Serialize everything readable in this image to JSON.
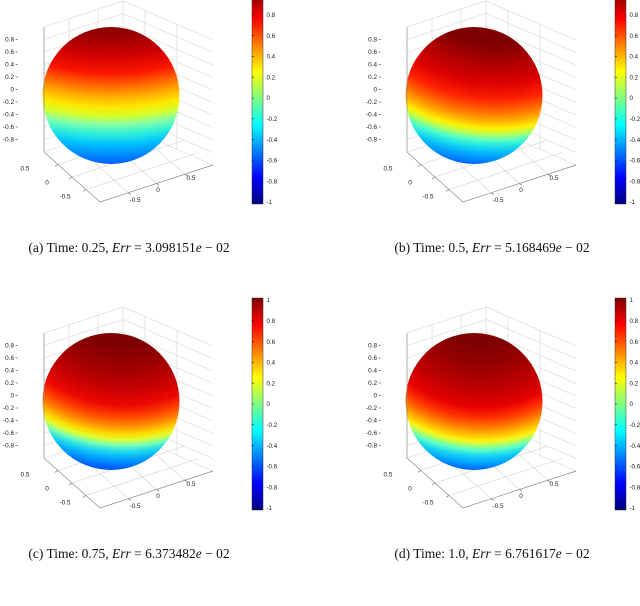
{
  "figure": {
    "background": "#ffffff",
    "panels": [
      {
        "id": "a",
        "caption": {
          "label": "(a)",
          "time_text": "Time: 0.25,",
          "err_word": "Err",
          "eq_mantissa": "= 3.098151",
          "e_char": "e",
          "exponent": " − 02"
        }
      },
      {
        "id": "b",
        "caption": {
          "label": "(b)",
          "time_text": "Time: 0.5,",
          "err_word": "Err",
          "eq_mantissa": "= 5.168469",
          "e_char": "e",
          "exponent": " − 02"
        }
      },
      {
        "id": "c",
        "caption": {
          "label": "(c)",
          "time_text": "Time: 0.75,",
          "err_word": "Err",
          "eq_mantissa": "= 6.373482",
          "e_char": "e",
          "exponent": " − 02"
        }
      },
      {
        "id": "d",
        "caption": {
          "label": "(d)",
          "time_text": "Time: 1.0,",
          "err_word": "Err",
          "eq_mantissa": "= 6.761617",
          "e_char": "e",
          "exponent": " − 02"
        }
      }
    ],
    "axes": {
      "z_ticks": [
        "0.8",
        "0.6",
        "0.4",
        "0.2",
        "0",
        "-0.2",
        "-0.4",
        "-0.6",
        "-0.8"
      ],
      "x_axis_ticks": [
        "0.5",
        "0",
        "-0.5"
      ],
      "y_axis_ticks": [
        "-0.5",
        "0",
        "0.5"
      ],
      "colorbar_ticks": [
        "1",
        "0.8",
        "0.6",
        "0.4",
        "0.2",
        "0",
        "-0.2",
        "-0.4",
        "-0.6",
        "-0.8",
        "-1"
      ]
    },
    "palette": {
      "colormap_name": "jet",
      "jet_stops_top_to_bottom": [
        "#7f0000",
        "#ff0000",
        "#ff8000",
        "#ffff00",
        "#80ff80",
        "#00ffff",
        "#0080ff",
        "#0000ff",
        "#000080"
      ],
      "grid_line": "#d6d6d6",
      "floor_grid_line": "#cfcfcf",
      "axis_line": "#8a8a8a",
      "tick_text": "#1a1a1a"
    }
  },
  "chart_data": [
    {
      "type": "heatmap",
      "variant": "3d-sphere-surface",
      "title": "(a) Time: 0.25, Err = 3.098151e − 02",
      "time": 0.25,
      "error": 0.03098151,
      "error_text": "3.098151e − 02",
      "colormap": "jet",
      "color_range": [
        -1,
        1
      ],
      "x_range": [
        -1,
        1
      ],
      "y_range": [
        -1,
        1
      ],
      "z_range": [
        -1,
        1
      ],
      "x_ticks": [
        0.5,
        0,
        -0.5
      ],
      "y_ticks": [
        -0.5,
        0,
        0.5
      ],
      "z_ticks": [
        0.8,
        0.6,
        0.4,
        0.2,
        0,
        -0.2,
        -0.4,
        -0.6,
        -0.8
      ],
      "colorbar_ticks": [
        1,
        0.8,
        0.6,
        0.4,
        0.2,
        0,
        -0.2,
        -0.4,
        -0.6,
        -0.8,
        -1
      ],
      "description": "Scalar field on unit sphere; color bands nearly horizontal: dark-red cap at top, yellow band ~60% down, cyan/blue at bottom pole."
    },
    {
      "type": "heatmap",
      "variant": "3d-sphere-surface",
      "title": "(b) Time: 0.5, Err = 5.168469e − 02",
      "time": 0.5,
      "error": 0.05168469,
      "error_text": "5.168469e − 02",
      "colormap": "jet",
      "color_range": [
        -1,
        1
      ],
      "x_range": [
        -1,
        1
      ],
      "y_range": [
        -1,
        1
      ],
      "z_range": [
        -1,
        1
      ],
      "x_ticks": [
        0.5,
        0,
        -0.5
      ],
      "y_ticks": [
        -0.5,
        0,
        0.5
      ],
      "z_ticks": [
        0.8,
        0.6,
        0.4,
        0.2,
        0,
        -0.2,
        -0.4,
        -0.6,
        -0.8
      ],
      "colorbar_ticks": [
        1,
        0.8,
        0.6,
        0.4,
        0.2,
        0,
        -0.2,
        -0.4,
        -0.6,
        -0.8,
        -1
      ],
      "description": "Red region grown and tilted; yellow/green band curves up at left edge, cyan-blue confined to bottom rim."
    },
    {
      "type": "heatmap",
      "variant": "3d-sphere-surface",
      "title": "(c) Time: 0.75, Err = 6.373482e − 02",
      "time": 0.75,
      "error": 0.06373482,
      "error_text": "6.373482e − 02",
      "colormap": "jet",
      "color_range": [
        -1,
        1
      ],
      "x_range": [
        -1,
        1
      ],
      "y_range": [
        -1,
        1
      ],
      "z_range": [
        -1,
        1
      ],
      "x_ticks": [
        0.5,
        0,
        -0.5
      ],
      "y_ticks": [
        -0.5,
        0,
        0.5
      ],
      "z_ticks": [
        0.8,
        0.6,
        0.4,
        0.2,
        0,
        -0.2,
        -0.4,
        -0.6,
        -0.8
      ],
      "colorbar_ticks": [
        1,
        0.8,
        0.6,
        0.4,
        0.2,
        0,
        -0.2,
        -0.4,
        -0.6,
        -0.8,
        -1
      ],
      "description": "Red/dark-red covers upper two-thirds; U-shaped yellow band low on sphere; cyan crescent along bottom-left and bottom rim."
    },
    {
      "type": "heatmap",
      "variant": "3d-sphere-surface",
      "title": "(d) Time: 1.0, Err = 6.761617e − 02",
      "time": 1.0,
      "error": 0.06761617,
      "error_text": "6.761617e − 02",
      "colormap": "jet",
      "color_range": [
        -1,
        1
      ],
      "x_range": [
        -1,
        1
      ],
      "y_range": [
        -1,
        1
      ],
      "z_range": [
        -1,
        1
      ],
      "x_ticks": [
        0.5,
        0,
        -0.5
      ],
      "y_ticks": [
        -0.5,
        0,
        0.5
      ],
      "z_ticks": [
        0.8,
        0.6,
        0.4,
        0.2,
        0,
        -0.2,
        -0.4,
        -0.6,
        -0.8
      ],
      "colorbar_ticks": [
        1,
        0.8,
        0.6,
        0.4,
        0.2,
        0,
        -0.2,
        -0.4,
        -0.6,
        -0.8,
        -1
      ],
      "description": "Dark-red blob dominates; narrow yellow U-band near bottom; cyan rim on lower-left, bottom and lower-right edges; blue only at bottom tip."
    }
  ]
}
